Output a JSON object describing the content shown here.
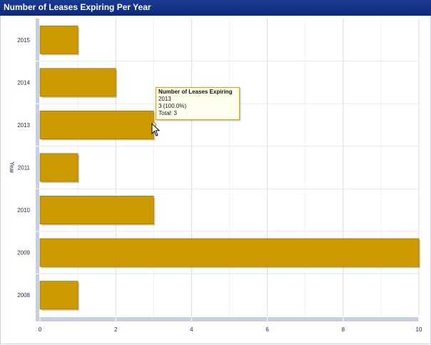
{
  "header": {
    "title": "Number of Leases Expiring Per Year",
    "icons": [
      "plus-circle-icon",
      "print-icon",
      "email-icon"
    ]
  },
  "chart_data": {
    "type": "bar",
    "orientation": "horizontal",
    "categories": [
      "2015",
      "2014",
      "2013",
      "2011",
      "2010",
      "2009",
      "2008"
    ],
    "values": [
      1,
      2,
      3,
      1,
      3,
      10,
      1
    ],
    "ylabel": "Year",
    "xlabel": "",
    "xlim": [
      0,
      10
    ],
    "x_ticks": [
      0,
      2,
      4,
      6,
      8,
      10
    ],
    "grid": true,
    "bar_color": "#cc9900"
  },
  "tooltip": {
    "title": "Number of Leases Expiring",
    "category": "2013",
    "value_line": "3 (100.0%)",
    "total_label": "Total:",
    "total_value": "3"
  }
}
